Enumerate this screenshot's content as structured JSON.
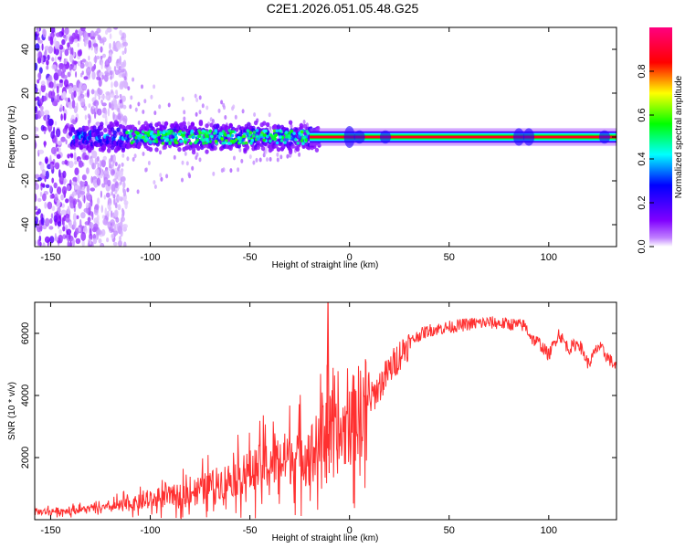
{
  "title": "C2E1.2026.051.05.48.G25",
  "chart_data": [
    {
      "type": "heatmap",
      "xlabel": "Height of straight line (km)",
      "ylabel": "Frequency (Hz)",
      "xlim": [
        -158,
        134
      ],
      "ylim": [
        -50,
        50
      ],
      "xticks": [
        -150,
        -100,
        -50,
        0,
        50,
        100
      ],
      "xtick_labels": [
        "-150",
        "-100",
        "-50",
        "0",
        "50",
        "100"
      ],
      "yticks": [
        -40,
        -20,
        0,
        20,
        40
      ],
      "ytick_labels": [
        "-40",
        "-20",
        "0",
        "20",
        "40"
      ],
      "colorbar": {
        "label": "Normalized spectral amplitude",
        "range": [
          0,
          1
        ],
        "ticks": [
          0.0,
          0.2,
          0.4,
          0.6,
          0.8
        ],
        "tick_labels": [
          "0.0",
          "0.2",
          "0.4",
          "0.6",
          "0.8"
        ],
        "colors": [
          "#ffffff",
          "#8000ff",
          "#0000ff",
          "#00ffff",
          "#00ff00",
          "#ffff00",
          "#ff0000",
          "#ff0080"
        ]
      },
      "segments": [
        {
          "x_start": -158,
          "x_end": -120,
          "freq_spread_hz": 48,
          "amplitude": 0.2,
          "description": "noise"
        },
        {
          "x_start": -140,
          "x_end": -20,
          "freq_spread_hz": 6,
          "amplitude": 0.45
        },
        {
          "x_start": -20,
          "x_end": 134,
          "freq_spread_hz": 2,
          "amplitude": 0.95
        }
      ]
    },
    {
      "type": "line",
      "xlabel": "Height of straight line (km)",
      "ylabel": "SNR (10 * v/v)",
      "xlim": [
        -158,
        134
      ],
      "ylim": [
        0,
        7000
      ],
      "xticks": [
        -150,
        -100,
        -50,
        0,
        50,
        100
      ],
      "xtick_labels": [
        "-150",
        "-100",
        "-50",
        "0",
        "50",
        "100"
      ],
      "yticks": [
        2000,
        4000,
        6000
      ],
      "ytick_labels": [
        "2000",
        "4000",
        "6000"
      ],
      "series": [
        {
          "name": "SNR",
          "color": "#ff3030",
          "x": [
            -158,
            -140,
            -120,
            -100,
            -80,
            -60,
            -40,
            -25,
            -15,
            -12,
            -8,
            -5,
            0,
            5,
            10,
            15,
            20,
            25,
            30,
            35,
            40,
            50,
            60,
            70,
            80,
            88,
            92,
            95,
            100,
            105,
            110,
            115,
            120,
            125,
            130,
            134
          ],
          "y": [
            250,
            300,
            400,
            600,
            900,
            1300,
            1800,
            2100,
            2300,
            3200,
            2500,
            2700,
            3100,
            3500,
            3800,
            4300,
            4800,
            5300,
            5700,
            5950,
            6100,
            6200,
            6300,
            6350,
            6300,
            6250,
            5800,
            5700,
            5300,
            6000,
            5500,
            5700,
            5000,
            5600,
            5200,
            4900
          ]
        }
      ]
    }
  ]
}
